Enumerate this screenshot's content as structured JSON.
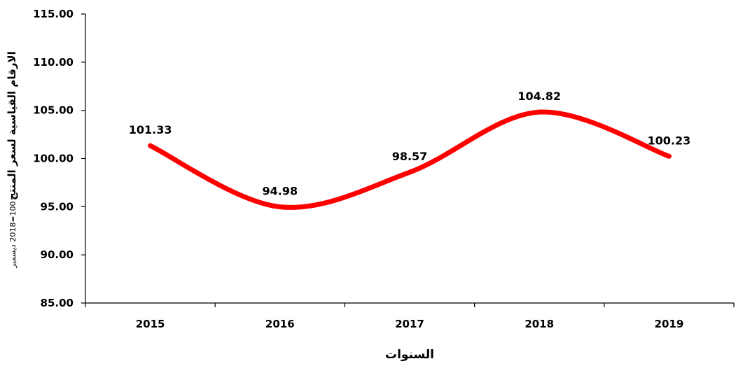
{
  "chart_data": {
    "type": "line",
    "title": "",
    "categories": [
      "2015",
      "2016",
      "2017",
      "2018",
      "2019"
    ],
    "series": [
      {
        "values": [
          101.33,
          94.98,
          98.57,
          104.82,
          100.23
        ],
        "color": "#ff0000",
        "smooth": true
      }
    ],
    "data_labels": [
      "101.33",
      "94.98",
      "98.57",
      "104.82",
      "100.23"
    ],
    "xlabel": "السنوات",
    "ylabel": "الارقام القياسية لسعر المنتج",
    "ylabel_note": "100=2018 ديسمبر",
    "ylim": [
      85,
      115
    ],
    "yticks": [
      "85.00",
      "90.00",
      "95.00",
      "100.00",
      "105.00",
      "110.00",
      "115.00"
    ],
    "ytick_values": [
      85,
      90,
      95,
      100,
      105,
      110,
      115
    ],
    "grid": false,
    "legend": "none",
    "axis_color": "#000000"
  }
}
